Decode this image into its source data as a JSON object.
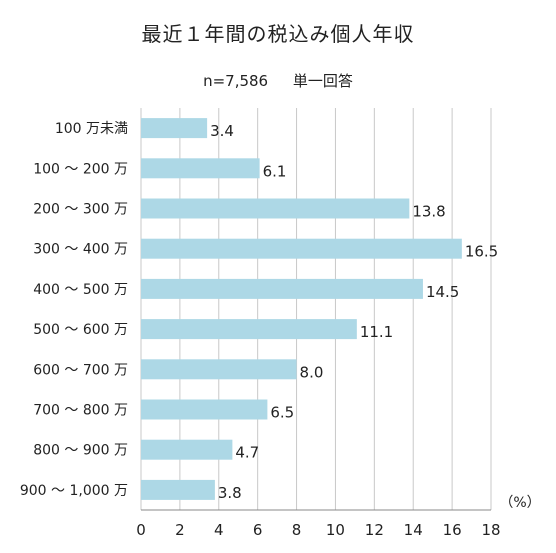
{
  "chart_data": {
    "type": "bar",
    "orientation": "horizontal",
    "title": "最近１年間の税込み個人年収",
    "subtitle_left": "n=7,586",
    "subtitle_right": "単一回答",
    "unit_label": "（%）",
    "categories": [
      "100 万未満",
      "100 〜 200 万",
      "200 〜 300 万",
      "300 〜 400 万",
      "400 〜 500 万",
      "500 〜 600 万",
      "600 〜 700 万",
      "700 〜 800 万",
      "800 〜 900 万",
      "900 〜 1,000 万"
    ],
    "values": [
      3.4,
      6.1,
      13.8,
      16.5,
      14.5,
      11.1,
      8.0,
      6.5,
      4.7,
      3.8
    ],
    "value_labels": [
      "3.4",
      "6.1",
      "13.8",
      "16.5",
      "14.5",
      "11.1",
      "8.0",
      "6.5",
      "4.7",
      "3.8"
    ],
    "xlim": [
      0,
      18
    ],
    "xticks": [
      0,
      2,
      4,
      6,
      8,
      10,
      12,
      14,
      16,
      18
    ],
    "grid": true,
    "bar_color": "#add8e6",
    "grid_color": "#c8c8c8"
  }
}
